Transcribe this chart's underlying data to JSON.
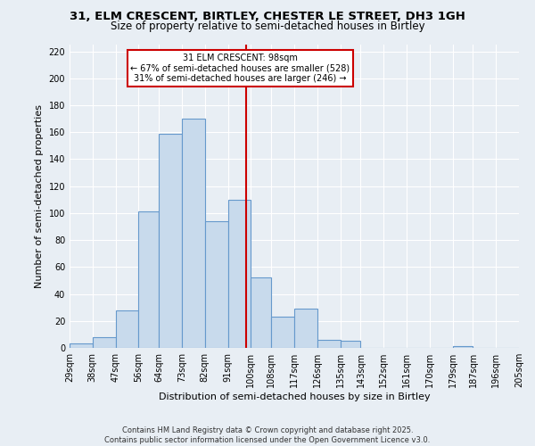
{
  "title_line1": "31, ELM CRESCENT, BIRTLEY, CHESTER LE STREET, DH3 1GH",
  "title_line2": "Size of property relative to semi-detached houses in Birtley",
  "xlabel": "Distribution of semi-detached houses by size in Birtley",
  "ylabel": "Number of semi-detached properties",
  "footer_line1": "Contains HM Land Registry data © Crown copyright and database right 2025.",
  "footer_line2": "Contains public sector information licensed under the Open Government Licence v3.0.",
  "bin_edges": [
    29,
    38,
    47,
    56,
    64,
    73,
    82,
    91,
    100,
    108,
    117,
    126,
    135,
    143,
    152,
    161,
    170,
    179,
    187,
    196,
    205
  ],
  "bin_labels": [
    "29sqm",
    "38sqm",
    "47sqm",
    "56sqm",
    "64sqm",
    "73sqm",
    "82sqm",
    "91sqm",
    "100sqm",
    "108sqm",
    "117sqm",
    "126sqm",
    "135sqm",
    "143sqm",
    "152sqm",
    "161sqm",
    "170sqm",
    "179sqm",
    "187sqm",
    "196sqm",
    "205sqm"
  ],
  "counts": [
    3,
    8,
    28,
    101,
    159,
    170,
    94,
    110,
    52,
    23,
    29,
    6,
    5,
    0,
    0,
    0,
    0,
    1,
    0,
    0
  ],
  "bar_color": "#c8daec",
  "bar_edge_color": "#6699cc",
  "vline_x": 98,
  "vline_color": "#cc0000",
  "annotation_title": "31 ELM CRESCENT: 98sqm",
  "annotation_line2": "← 67% of semi-detached houses are smaller (528)",
  "annotation_line3": "31% of semi-detached houses are larger (246) →",
  "annotation_box_color": "white",
  "annotation_box_edge_color": "#cc0000",
  "ylim": [
    0,
    225
  ],
  "yticks": [
    0,
    20,
    40,
    60,
    80,
    100,
    120,
    140,
    160,
    180,
    200,
    220
  ],
  "bg_color": "#e8eef4",
  "plot_bg_color": "#e8eef4",
  "grid_color": "white",
  "title_fontsize": 9.5,
  "subtitle_fontsize": 8.5,
  "xlabel_fontsize": 8,
  "ylabel_fontsize": 8,
  "tick_fontsize": 7,
  "footer_fontsize": 6
}
